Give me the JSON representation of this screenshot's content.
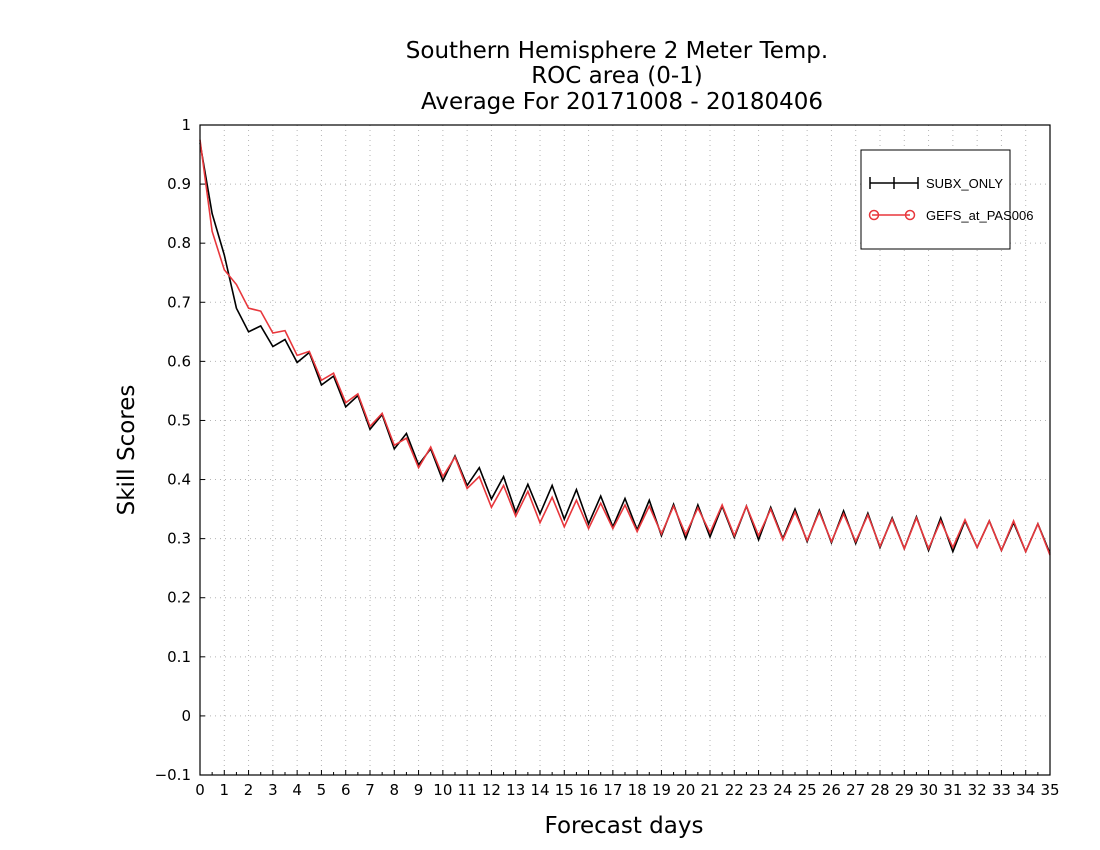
{
  "chart_data": {
    "type": "line",
    "title_lines": [
      "Southern Hemisphere 2 Meter Temp.",
      "ROC area (0-1)",
      "Average For 20171008 - 20180406"
    ],
    "xlabel": "Forecast days",
    "ylabel": "Skill Scores",
    "xlim": [
      0,
      35
    ],
    "ylim": [
      -0.1,
      1
    ],
    "x_ticks": [
      "0",
      "1",
      "2",
      "3",
      "4",
      "5",
      "6",
      "7",
      "8",
      "9",
      "10",
      "11",
      "12",
      "13",
      "14",
      "15",
      "16",
      "17",
      "18",
      "19",
      "20",
      "21",
      "22",
      "23",
      "24",
      "25",
      "26",
      "27",
      "28",
      "29",
      "30",
      "31",
      "32",
      "33",
      "34",
      "35"
    ],
    "y_ticks": [
      "1",
      "0.9",
      "0.8",
      "0.7",
      "0.6",
      "0.5",
      "0.4",
      "0.3",
      "0.2",
      "0.1",
      "0",
      "-0.1"
    ],
    "grid": true,
    "legend_position": "top-right",
    "x_step": 0.5,
    "series": [
      {
        "name": "SUBX_ONLY",
        "color": "#000000",
        "marker": "plus",
        "values": [
          0.97,
          0.85,
          0.78,
          0.69,
          0.65,
          0.66,
          0.625,
          0.637,
          0.598,
          0.615,
          0.56,
          0.575,
          0.523,
          0.542,
          0.485,
          0.51,
          0.452,
          0.478,
          0.425,
          0.452,
          0.398,
          0.44,
          0.39,
          0.42,
          0.367,
          0.405,
          0.345,
          0.392,
          0.342,
          0.39,
          0.333,
          0.383,
          0.325,
          0.372,
          0.32,
          0.368,
          0.315,
          0.365,
          0.305,
          0.358,
          0.3,
          0.357,
          0.303,
          0.355,
          0.302,
          0.355,
          0.298,
          0.353,
          0.3,
          0.35,
          0.295,
          0.348,
          0.293,
          0.347,
          0.292,
          0.343,
          0.285,
          0.335,
          0.283,
          0.337,
          0.28,
          0.335,
          0.278,
          0.33,
          0.285,
          0.33,
          0.28,
          0.327,
          0.278,
          0.325,
          0.275
        ]
      },
      {
        "name": "GEFS_at_PAS006",
        "color": "#e8373c",
        "marker": "circle",
        "values": [
          0.975,
          0.82,
          0.755,
          0.73,
          0.69,
          0.685,
          0.648,
          0.652,
          0.61,
          0.617,
          0.568,
          0.58,
          0.53,
          0.545,
          0.49,
          0.512,
          0.458,
          0.47,
          0.42,
          0.455,
          0.405,
          0.438,
          0.385,
          0.405,
          0.353,
          0.39,
          0.338,
          0.38,
          0.327,
          0.37,
          0.32,
          0.365,
          0.317,
          0.36,
          0.317,
          0.357,
          0.312,
          0.355,
          0.308,
          0.355,
          0.307,
          0.352,
          0.31,
          0.357,
          0.305,
          0.355,
          0.305,
          0.35,
          0.298,
          0.345,
          0.297,
          0.345,
          0.295,
          0.342,
          0.295,
          0.34,
          0.287,
          0.333,
          0.283,
          0.335,
          0.283,
          0.33,
          0.285,
          0.332,
          0.285,
          0.33,
          0.28,
          0.33,
          0.278,
          0.325,
          0.272
        ]
      }
    ]
  }
}
